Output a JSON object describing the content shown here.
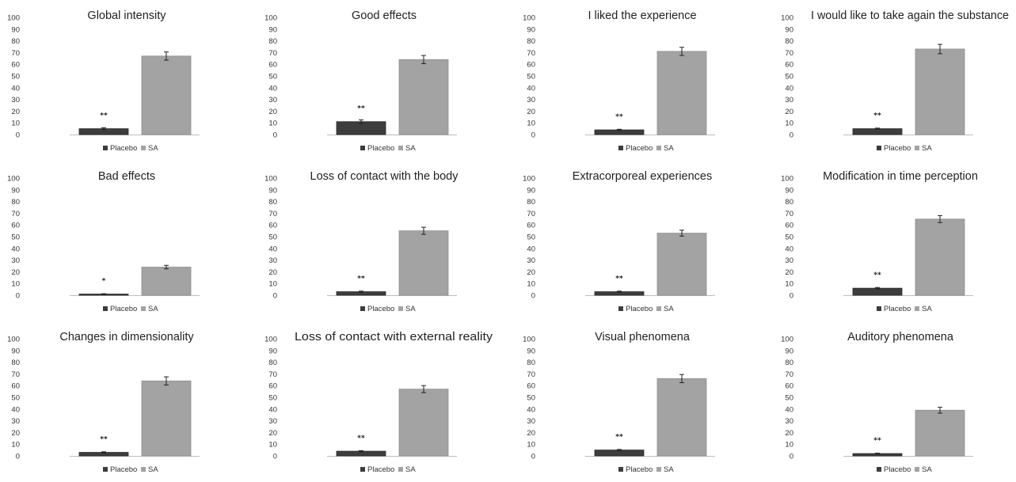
{
  "colors": {
    "placebo": "#3d3d3d",
    "sa": "#a3a3a3",
    "errorbar": "#222222",
    "axis": "#bdbdbd"
  },
  "chart_data": [
    {
      "type": "bar",
      "title": "Global intensity",
      "categories": [
        "Placebo",
        "SA"
      ],
      "values": [
        5,
        67
      ],
      "errors": [
        0.8,
        3.5
      ],
      "significance": "**",
      "yticks": [
        "0",
        "10",
        "20",
        "30",
        "40",
        "50",
        "60",
        "70",
        "80",
        "90",
        "100"
      ],
      "ylim": [
        0,
        100
      ],
      "legend": [
        "Placebo",
        "SA"
      ],
      "legend_position": "bottom"
    },
    {
      "type": "bar",
      "title": "Good effects",
      "categories": [
        "Placebo",
        "SA"
      ],
      "values": [
        11,
        64
      ],
      "errors": [
        1.5,
        3.5
      ],
      "significance": "**",
      "yticks": [
        "0",
        "10",
        "20",
        "30",
        "40",
        "50",
        "60",
        "70",
        "80",
        "90",
        "100"
      ],
      "ylim": [
        0,
        100
      ],
      "legend": [
        "Placebo",
        "SA"
      ],
      "legend_position": "bottom"
    },
    {
      "type": "bar",
      "title": "I liked the experience",
      "categories": [
        "Placebo",
        "SA"
      ],
      "values": [
        4,
        71
      ],
      "errors": [
        0.5,
        3.5
      ],
      "significance": "**",
      "yticks": [
        "0",
        "10",
        "20",
        "30",
        "40",
        "50",
        "60",
        "70",
        "80",
        "90",
        "100"
      ],
      "ylim": [
        0,
        100
      ],
      "legend": [
        "Placebo",
        "SA"
      ],
      "legend_position": "bottom"
    },
    {
      "type": "bar",
      "title": "I would like to take again the substance",
      "categories": [
        "Placebo",
        "SA"
      ],
      "values": [
        5,
        73
      ],
      "errors": [
        0.5,
        4
      ],
      "significance": "**",
      "yticks": [
        "0",
        "10",
        "20",
        "30",
        "40",
        "50",
        "60",
        "70",
        "80",
        "90",
        "100"
      ],
      "ylim": [
        0,
        100
      ],
      "legend": [
        "Placebo",
        "SA"
      ],
      "legend_position": "bottom"
    },
    {
      "type": "bar",
      "title": "Bad effects",
      "categories": [
        "Placebo",
        "SA"
      ],
      "values": [
        1,
        24
      ],
      "errors": [
        0.3,
        1.5
      ],
      "significance": "*",
      "yticks": [
        "0",
        "10",
        "20",
        "30",
        "40",
        "50",
        "60",
        "70",
        "80",
        "90",
        "100"
      ],
      "ylim": [
        0,
        100
      ],
      "legend": [
        "Placebo",
        "SA"
      ],
      "legend_position": "bottom"
    },
    {
      "type": "bar",
      "title": "Loss of contact with the body",
      "categories": [
        "Placebo",
        "SA"
      ],
      "values": [
        3,
        55
      ],
      "errors": [
        0.5,
        3
      ],
      "significance": "**",
      "yticks": [
        "0",
        "10",
        "20",
        "30",
        "40",
        "50",
        "60",
        "70",
        "80",
        "90",
        "100"
      ],
      "ylim": [
        0,
        100
      ],
      "legend": [
        "Placebo",
        "SA"
      ],
      "legend_position": "bottom"
    },
    {
      "type": "bar",
      "title": "Extracorporeal experiences",
      "categories": [
        "Placebo",
        "SA"
      ],
      "values": [
        3,
        53
      ],
      "errors": [
        0.5,
        2.5
      ],
      "significance": "**",
      "yticks": [
        "0",
        "10",
        "20",
        "30",
        "40",
        "50",
        "60",
        "70",
        "80",
        "90",
        "100"
      ],
      "ylim": [
        0,
        100
      ],
      "legend": [
        "Placebo",
        "SA"
      ],
      "legend_position": "bottom"
    },
    {
      "type": "bar",
      "title": "Modification in time perception",
      "categories": [
        "Placebo",
        "SA"
      ],
      "values": [
        6,
        65
      ],
      "errors": [
        0.6,
        3
      ],
      "significance": "**",
      "yticks": [
        "0",
        "10",
        "20",
        "30",
        "40",
        "50",
        "60",
        "70",
        "80",
        "90",
        "100"
      ],
      "ylim": [
        0,
        100
      ],
      "legend": [
        "Placebo",
        "SA"
      ],
      "legend_position": "bottom"
    },
    {
      "type": "bar",
      "title": "Changes in dimensionality",
      "categories": [
        "Placebo",
        "SA"
      ],
      "values": [
        3,
        64
      ],
      "errors": [
        0.5,
        3.5
      ],
      "significance": "**",
      "yticks": [
        "0",
        "10",
        "20",
        "30",
        "40",
        "50",
        "60",
        "70",
        "80",
        "90",
        "100"
      ],
      "ylim": [
        0,
        100
      ],
      "legend": [
        "Placebo",
        "SA"
      ],
      "legend_position": "bottom"
    },
    {
      "type": "bar",
      "title": "Loss of contact with external reality",
      "categories": [
        "Placebo",
        "SA"
      ],
      "values": [
        4,
        57
      ],
      "errors": [
        0.5,
        3
      ],
      "significance": "**",
      "yticks": [
        "0",
        "10",
        "20",
        "30",
        "40",
        "50",
        "60",
        "70",
        "80",
        "90",
        "100"
      ],
      "ylim": [
        0,
        100
      ],
      "legend": [
        "Placebo",
        "SA"
      ],
      "legend_position": "bottom"
    },
    {
      "type": "bar",
      "title": "Visual phenomena",
      "categories": [
        "Placebo",
        "SA"
      ],
      "values": [
        5,
        66
      ],
      "errors": [
        0.5,
        3.5
      ],
      "significance": "**",
      "yticks": [
        "0",
        "10",
        "20",
        "30",
        "40",
        "50",
        "60",
        "70",
        "80",
        "90",
        "100"
      ],
      "ylim": [
        0,
        100
      ],
      "legend": [
        "Placebo",
        "SA"
      ],
      "legend_position": "bottom"
    },
    {
      "type": "bar",
      "title": "Auditory phenomena",
      "categories": [
        "Placebo",
        "SA"
      ],
      "values": [
        2,
        39
      ],
      "errors": [
        0.3,
        2.5
      ],
      "significance": "**",
      "yticks": [
        "0",
        "10",
        "20",
        "30",
        "40",
        "50",
        "60",
        "70",
        "80",
        "90",
        "100"
      ],
      "ylim": [
        0,
        100
      ],
      "legend": [
        "Placebo",
        "SA"
      ],
      "legend_position": "bottom"
    }
  ]
}
